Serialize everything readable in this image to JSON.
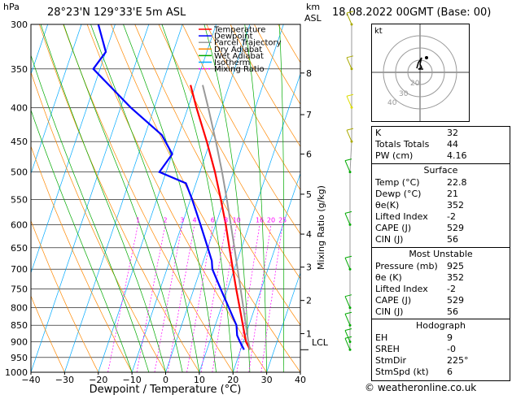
{
  "header": {
    "p_unit": "hPa",
    "location": "28°23'N 129°33'E 5m ASL",
    "km_unit": "km",
    "asl": "ASL",
    "datetime": "18.08.2022 00GMT (Base: 00)"
  },
  "legend": [
    {
      "label": "Temperature",
      "color": "#ff0000",
      "dash": ""
    },
    {
      "label": "Dewpoint",
      "color": "#0000ff",
      "dash": ""
    },
    {
      "label": "Parcel Trajectory",
      "color": "#999999",
      "dash": ""
    },
    {
      "label": "Dry Adiabat",
      "color": "#ff8800",
      "dash": ""
    },
    {
      "label": "Wet Adiabat",
      "color": "#00aa00",
      "dash": ""
    },
    {
      "label": "Isotherm",
      "color": "#00aaff",
      "dash": ""
    },
    {
      "label": "Mixing Ratio",
      "color": "#ff00ff",
      "dash": "2,2"
    }
  ],
  "chart_data": {
    "type": "line",
    "title": "",
    "xlabel": "Dewpoint / Temperature (°C)",
    "ylabel": "",
    "right_label": "Mixing Ratio (g/kg)",
    "xlim": [
      -40,
      40
    ],
    "ylim": [
      1000,
      300
    ],
    "skew": 35,
    "pressure_ticks": [
      300,
      350,
      400,
      450,
      500,
      550,
      600,
      650,
      700,
      750,
      800,
      850,
      900,
      950,
      1000
    ],
    "temp_ticks": [
      -40,
      -30,
      -20,
      -10,
      0,
      10,
      20,
      30,
      40
    ],
    "km_ticks": [
      {
        "km": "1",
        "p": 875
      },
      {
        "km": "2",
        "p": 780
      },
      {
        "km": "3",
        "p": 695
      },
      {
        "km": "4",
        "p": 620
      },
      {
        "km": "5",
        "p": 540
      },
      {
        "km": "6",
        "p": 470
      },
      {
        "km": "7",
        "p": 410
      },
      {
        "km": "8",
        "p": 355
      }
    ],
    "lcl": {
      "label": "LCL",
      "p": 925
    },
    "mixing_ratio_labels": [
      "1",
      "2",
      "3",
      "4",
      "6",
      "8",
      "10",
      "16",
      "20",
      "25"
    ],
    "mixing_ratio_values": [
      1,
      2,
      3,
      4,
      6,
      8,
      10,
      16,
      20,
      25
    ],
    "isotherms": [
      -100,
      -90,
      -80,
      -70,
      -60,
      -50,
      -40,
      -30,
      -20,
      -10,
      0,
      10,
      20,
      30,
      40
    ],
    "dry_adiabats_thetaC": [
      -30,
      -20,
      -10,
      0,
      10,
      20,
      30,
      40,
      50,
      60,
      70,
      80,
      90,
      100,
      110,
      120,
      130,
      140
    ],
    "wet_adiabats_T1000": [
      -10,
      -5,
      0,
      5,
      10,
      15,
      20,
      25,
      30,
      35,
      40
    ],
    "series": [
      {
        "name": "Temperature",
        "color": "#ff0000",
        "points": [
          [
            925,
            22.8
          ],
          [
            900,
            20.8
          ],
          [
            850,
            18.2
          ],
          [
            800,
            15.5
          ],
          [
            750,
            12.6
          ],
          [
            700,
            9.6
          ],
          [
            650,
            6.4
          ],
          [
            600,
            3.0
          ],
          [
            550,
            -1.0
          ],
          [
            500,
            -5.5
          ],
          [
            450,
            -11.0
          ],
          [
            400,
            -17.5
          ],
          [
            370,
            -21.5
          ]
        ]
      },
      {
        "name": "Dewpoint",
        "color": "#0000ff",
        "points": [
          [
            925,
            21.0
          ],
          [
            900,
            19.0
          ],
          [
            880,
            17.5
          ],
          [
            850,
            16.3
          ],
          [
            800,
            12.3
          ],
          [
            750,
            8.0
          ],
          [
            700,
            3.5
          ],
          [
            680,
            2.5
          ],
          [
            650,
            0.0
          ],
          [
            600,
            -4.5
          ],
          [
            550,
            -9.5
          ],
          [
            520,
            -13.0
          ],
          [
            500,
            -22.0
          ],
          [
            470,
            -20.0
          ],
          [
            440,
            -25.0
          ],
          [
            400,
            -37.0
          ],
          [
            350,
            -52.0
          ],
          [
            330,
            -50.0
          ],
          [
            300,
            -55.0
          ]
        ]
      },
      {
        "name": "Parcel Trajectory",
        "color": "#999999",
        "points": [
          [
            925,
            22.8
          ],
          [
            900,
            21.5
          ],
          [
            850,
            19.1
          ],
          [
            800,
            16.6
          ],
          [
            750,
            13.9
          ],
          [
            700,
            11.0
          ],
          [
            650,
            7.9
          ],
          [
            600,
            4.5
          ],
          [
            550,
            0.8
          ],
          [
            500,
            -3.4
          ],
          [
            450,
            -8.3
          ],
          [
            400,
            -14.0
          ],
          [
            370,
            -17.9
          ]
        ]
      }
    ],
    "wind_barbs": [
      {
        "p": 925,
        "color": "#00aa00"
      },
      {
        "p": 900,
        "color": "#00aa00"
      },
      {
        "p": 850,
        "color": "#00aa00"
      },
      {
        "p": 800,
        "color": "#00aa00"
      },
      {
        "p": 700,
        "color": "#00aa00"
      },
      {
        "p": 600,
        "color": "#00aa00"
      },
      {
        "p": 500,
        "color": "#00aa00"
      },
      {
        "p": 450,
        "color": "#aaaa00"
      },
      {
        "p": 400,
        "color": "#dddd00"
      },
      {
        "p": 350,
        "color": "#aaaa00"
      },
      {
        "p": 300,
        "color": "#aaaa00"
      }
    ]
  },
  "hodograph": {
    "label": "kt",
    "ring_labels": [
      "20",
      "30",
      "40"
    ]
  },
  "indices": [
    {
      "k": "K",
      "v": "32"
    },
    {
      "k": "Totals Totals",
      "v": "44"
    },
    {
      "k": "PW (cm)",
      "v": "4.16"
    }
  ],
  "surface": {
    "title": "Surface",
    "rows": [
      {
        "k": "Temp (°C)",
        "v": "22.8"
      },
      {
        "k": "Dewp (°C)",
        "v": "21"
      },
      {
        "k": "θe(K)",
        "v": "352"
      },
      {
        "k": "Lifted Index",
        "v": "-2"
      },
      {
        "k": "CAPE (J)",
        "v": "529"
      },
      {
        "k": "CIN (J)",
        "v": "56"
      }
    ]
  },
  "most_unstable": {
    "title": "Most Unstable",
    "rows": [
      {
        "k": "Pressure (mb)",
        "v": "925"
      },
      {
        "k": "θe (K)",
        "v": "352"
      },
      {
        "k": "Lifted Index",
        "v": "-2"
      },
      {
        "k": "CAPE (J)",
        "v": "529"
      },
      {
        "k": "CIN (J)",
        "v": "56"
      }
    ]
  },
  "hodograph_table": {
    "title": "Hodograph",
    "rows": [
      {
        "k": "EH",
        "v": "9"
      },
      {
        "k": "SREH",
        "v": "-0"
      },
      {
        "k": "StmDir",
        "v": "225°"
      },
      {
        "k": "StmSpd (kt)",
        "v": "6"
      }
    ]
  },
  "footer": {
    "copyright": "© weatheronline.co.uk"
  }
}
